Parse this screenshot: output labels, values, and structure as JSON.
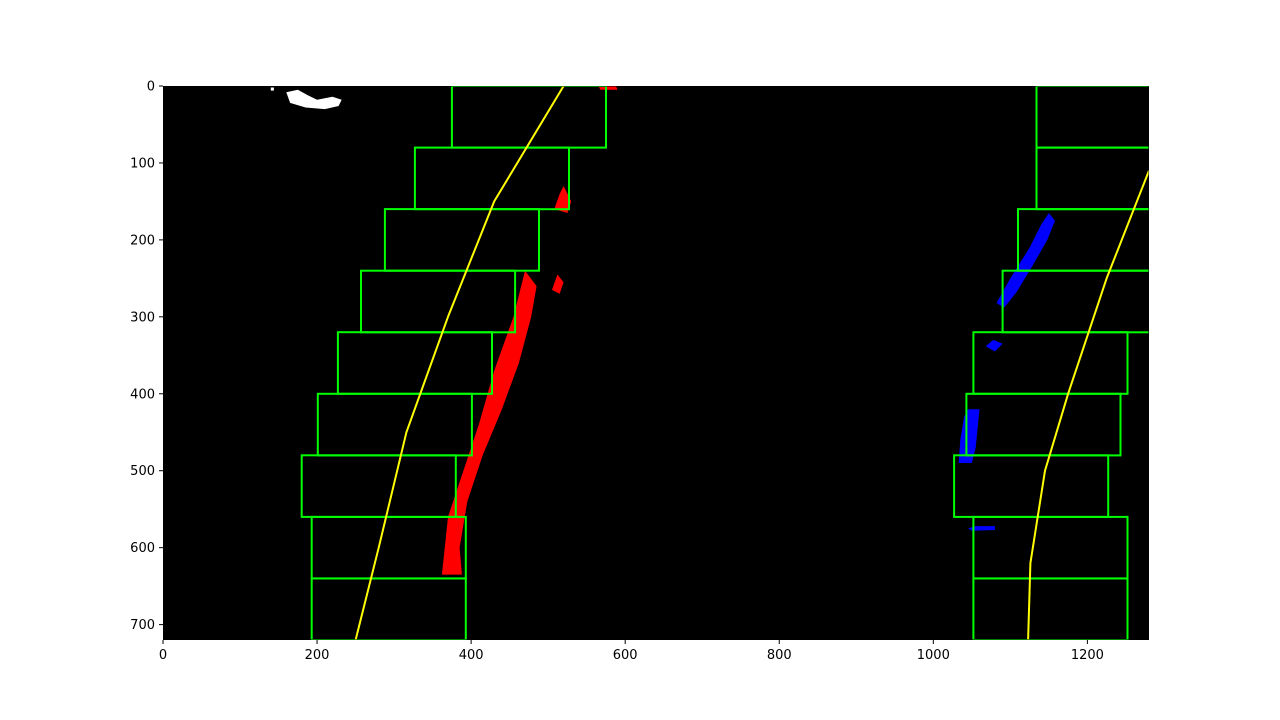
{
  "chart_data": {
    "type": "image",
    "xlim": [
      0,
      1280
    ],
    "ylim": [
      720,
      0
    ],
    "x_ticks": [
      0,
      200,
      400,
      600,
      800,
      1000,
      1200
    ],
    "y_ticks": [
      0,
      100,
      200,
      300,
      400,
      500,
      600,
      700
    ],
    "x_tick_labels": [
      "0",
      "200",
      "400",
      "600",
      "800",
      "1000",
      "1200"
    ],
    "y_tick_labels": [
      "0",
      "100",
      "200",
      "300",
      "400",
      "500",
      "600",
      "700"
    ],
    "background_color": "#000000",
    "colors": {
      "window": "#00ff00",
      "left_lane_pixels": "#ff0000",
      "right_lane_pixels": "#0000ff",
      "fit_line": "#ffff00",
      "noise": "#ffffff"
    },
    "sliding_windows": {
      "left": [
        {
          "x": [
            375,
            575
          ],
          "y": [
            0,
            80
          ]
        },
        {
          "x": [
            327,
            527
          ],
          "y": [
            80,
            160
          ]
        },
        {
          "x": [
            288,
            488
          ],
          "y": [
            160,
            240
          ]
        },
        {
          "x": [
            257,
            457
          ],
          "y": [
            240,
            320
          ]
        },
        {
          "x": [
            227,
            427
          ],
          "y": [
            320,
            400
          ]
        },
        {
          "x": [
            201,
            401
          ],
          "y": [
            400,
            480
          ]
        },
        {
          "x": [
            180,
            380
          ],
          "y": [
            480,
            560
          ]
        },
        {
          "x": [
            193,
            393
          ],
          "y": [
            560,
            640
          ]
        },
        {
          "x": [
            193,
            393
          ],
          "y": [
            640,
            720
          ]
        }
      ],
      "right": [
        {
          "x": [
            1134,
            1334
          ],
          "y": [
            0,
            80
          ]
        },
        {
          "x": [
            1134,
            1334
          ],
          "y": [
            80,
            160
          ]
        },
        {
          "x": [
            1110,
            1310
          ],
          "y": [
            160,
            240
          ]
        },
        {
          "x": [
            1090,
            1290
          ],
          "y": [
            240,
            320
          ]
        },
        {
          "x": [
            1052,
            1252
          ],
          "y": [
            320,
            400
          ]
        },
        {
          "x": [
            1043,
            1243
          ],
          "y": [
            400,
            480
          ]
        },
        {
          "x": [
            1027,
            1227
          ],
          "y": [
            480,
            560
          ]
        },
        {
          "x": [
            1052,
            1252
          ],
          "y": [
            560,
            640
          ]
        },
        {
          "x": [
            1052,
            1252
          ],
          "y": [
            640,
            720
          ]
        }
      ]
    },
    "fit_lines": {
      "left": {
        "x": [
          520,
          430,
          370,
          316,
          280,
          250
        ],
        "y": [
          0,
          150,
          300,
          450,
          600,
          720
        ]
      },
      "right": {
        "x": [
          1280,
          1225,
          1175,
          1145,
          1126,
          1123
        ],
        "y": [
          110,
          250,
          400,
          500,
          620,
          720
        ]
      }
    },
    "left_lane_blobs": [
      {
        "points": [
          [
            362,
            635
          ],
          [
            370,
            560
          ],
          [
            390,
            500
          ],
          [
            410,
            440
          ],
          [
            430,
            370
          ],
          [
            455,
            300
          ],
          [
            470,
            240
          ],
          [
            485,
            260
          ],
          [
            478,
            300
          ],
          [
            462,
            360
          ],
          [
            440,
            420
          ],
          [
            415,
            480
          ],
          [
            395,
            540
          ],
          [
            385,
            600
          ],
          [
            388,
            635
          ]
        ]
      },
      {
        "points": [
          [
            508,
            160
          ],
          [
            515,
            140
          ],
          [
            520,
            130
          ],
          [
            530,
            150
          ],
          [
            525,
            165
          ]
        ]
      },
      {
        "points": [
          [
            505,
            265
          ],
          [
            512,
            245
          ],
          [
            520,
            255
          ],
          [
            515,
            270
          ]
        ]
      },
      {
        "points": [
          [
            565,
            0
          ],
          [
            588,
            0
          ],
          [
            590,
            5
          ],
          [
            568,
            5
          ]
        ]
      }
    ],
    "right_lane_blobs": [
      {
        "points": [
          [
            1082,
            282
          ],
          [
            1100,
            250
          ],
          [
            1125,
            210
          ],
          [
            1140,
            180
          ],
          [
            1150,
            165
          ],
          [
            1158,
            175
          ],
          [
            1148,
            200
          ],
          [
            1128,
            235
          ],
          [
            1108,
            268
          ],
          [
            1092,
            288
          ]
        ]
      },
      {
        "points": [
          [
            1033,
            490
          ],
          [
            1035,
            460
          ],
          [
            1040,
            430
          ],
          [
            1045,
            420
          ],
          [
            1060,
            420
          ],
          [
            1058,
            440
          ],
          [
            1055,
            470
          ],
          [
            1050,
            490
          ]
        ]
      },
      {
        "points": [
          [
            1068,
            338
          ],
          [
            1078,
            330
          ],
          [
            1090,
            335
          ],
          [
            1080,
            345
          ]
        ]
      },
      {
        "points": [
          [
            1045,
            575
          ],
          [
            1055,
            572
          ],
          [
            1080,
            572
          ],
          [
            1080,
            577
          ],
          [
            1050,
            578
          ]
        ]
      }
    ],
    "noise_blobs": [
      {
        "points": [
          [
            160,
            8
          ],
          [
            175,
            5
          ],
          [
            188,
            12
          ],
          [
            200,
            18
          ],
          [
            220,
            14
          ],
          [
            232,
            18
          ],
          [
            228,
            26
          ],
          [
            210,
            30
          ],
          [
            185,
            28
          ],
          [
            165,
            22
          ]
        ]
      },
      {
        "points": [
          [
            140,
            2
          ],
          [
            144,
            2
          ],
          [
            144,
            6
          ],
          [
            140,
            6
          ]
        ]
      }
    ]
  }
}
